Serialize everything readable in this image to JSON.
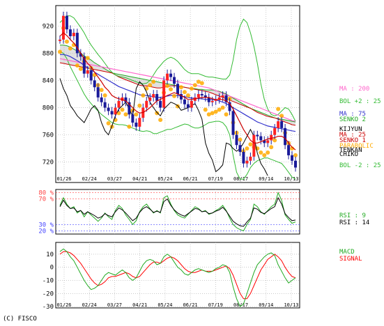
{
  "credit": "(C) FISCO",
  "colors": {
    "ma200": "#ff66cc",
    "ma75": "#3333cc",
    "ma25": "#cc0000",
    "bollinger": "#33bb33",
    "close": "#000000",
    "kumo": "#aaaaaa",
    "senko1": "#cc0000",
    "senko2": "#22aa22",
    "kijyun": "#000000",
    "parabolic": "#ffaa00",
    "tenkan": "#000000",
    "chiko": "#000000",
    "rsi9": "#22aa22",
    "rsi14": "#000000",
    "macd": "#22aa22",
    "signal": "#ff0000",
    "rsi_hi": "#ff4444",
    "rsi_lo": "#4444ff"
  },
  "chart_data": [
    {
      "type": "line",
      "panel": "price",
      "ylim": [
        690,
        950
      ],
      "yticks": [
        720,
        760,
        800,
        840,
        880,
        920
      ],
      "x_labels": [
        "01/26",
        "02/24",
        "03/27",
        "04/21",
        "05/24",
        "06/21",
        "07/19",
        "08/17",
        "09/14",
        "10/13"
      ],
      "legend": [
        {
          "name": "MA : 200",
          "color": "#ff66cc"
        },
        {
          "name": "BOL +2 : 25",
          "color": "#33bb33"
        },
        {
          "name": "MA : 75",
          "color": "#3333cc"
        },
        {
          "name": "SENKO 2",
          "color": "#22aa22"
        },
        {
          "name": "KIJYUN",
          "color": "#000000"
        },
        {
          "name": "MA : 25",
          "color": "#cc0000"
        },
        {
          "name": "SENKO 1",
          "color": "#cc0000"
        },
        {
          "name": "PARABOLIC",
          "color": "#ffaa00"
        },
        {
          "name": "TENKAN",
          "color": "#000000"
        },
        {
          "name": "CHIKO",
          "color": "#000000"
        },
        {
          "name": "BOL -2 : 25",
          "color": "#33bb33"
        }
      ],
      "series": {
        "close": [
          900,
          935,
          915,
          905,
          910,
          880,
          875,
          850,
          855,
          840,
          830,
          815,
          808,
          800,
          795,
          790,
          800,
          810,
          815,
          808,
          790,
          778,
          772,
          785,
          800,
          810,
          815,
          820,
          810,
          800,
          840,
          850,
          845,
          835,
          820,
          812,
          805,
          800,
          810,
          815,
          820,
          818,
          815,
          808,
          810,
          812,
          815,
          818,
          808,
          795,
          760,
          745,
          735,
          718,
          722,
          728,
          760,
          758,
          752,
          748,
          752,
          760,
          770,
          780,
          770,
          745,
          730,
          722,
          712
        ],
        "ma25": [
          905,
          910,
          906,
          900,
          895,
          888,
          880,
          872,
          865,
          860,
          852,
          845,
          838,
          830,
          825,
          818,
          815,
          813,
          812,
          810,
          805,
          800,
          795,
          792,
          793,
          796,
          800,
          805,
          810,
          812,
          815,
          818,
          820,
          822,
          820,
          818,
          815,
          812,
          812,
          813,
          814,
          815,
          815,
          815,
          813,
          812,
          812,
          812,
          810,
          806,
          798,
          788,
          778,
          768,
          760,
          752,
          748,
          748,
          750,
          752,
          754,
          755,
          756,
          758,
          758,
          755,
          748,
          742,
          738
        ],
        "ma75": [
          878,
          878,
          877,
          875,
          872,
          869,
          866,
          862,
          859,
          856,
          852,
          849,
          846,
          843,
          840,
          837,
          834,
          831,
          829,
          827,
          825,
          823,
          821,
          819,
          818,
          818,
          817,
          816,
          815,
          815,
          816,
          817,
          818,
          818,
          818,
          817,
          816,
          815,
          814,
          814,
          813,
          813,
          812,
          812,
          812,
          811,
          810,
          808,
          806,
          803,
          800,
          797,
          794,
          791,
          788,
          785,
          782,
          779,
          777,
          775,
          773,
          772,
          771,
          770,
          769,
          768,
          767,
          766,
          765
        ],
        "ma200": [
          872,
          871,
          870,
          869,
          868,
          867,
          866,
          865,
          864,
          863,
          862,
          861,
          860,
          859,
          858,
          857,
          856,
          855,
          854,
          853,
          852,
          851,
          850,
          849,
          848,
          847,
          846,
          845,
          844,
          843,
          842,
          841,
          840,
          839,
          838,
          837,
          836,
          835,
          834,
          833,
          832,
          831,
          830,
          829,
          827,
          825,
          823,
          821,
          819,
          817,
          815,
          813,
          811,
          809,
          807,
          805,
          803,
          801,
          799,
          797,
          795,
          793,
          791,
          789,
          787,
          785,
          783,
          781,
          780
        ],
        "bol_up": [
          925,
          930,
          935,
          935,
          932,
          925,
          918,
          910,
          900,
          892,
          885,
          878,
          872,
          865,
          858,
          852,
          848,
          846,
          845,
          844,
          842,
          840,
          838,
          836,
          835,
          836,
          840,
          848,
          856,
          862,
          868,
          872,
          874,
          872,
          868,
          862,
          856,
          852,
          850,
          850,
          850,
          848,
          846,
          845,
          845,
          844,
          843,
          842,
          842,
          848,
          870,
          900,
          920,
          930,
          925,
          910,
          890,
          865,
          835,
          812,
          798,
          790,
          788,
          790,
          795,
          800,
          798,
          790,
          780
        ],
        "bol_dn": [
          882,
          880,
          872,
          860,
          850,
          840,
          830,
          820,
          812,
          806,
          800,
          795,
          790,
          786,
          782,
          778,
          776,
          775,
          775,
          774,
          772,
          770,
          768,
          766,
          765,
          766,
          765,
          762,
          762,
          764,
          766,
          768,
          768,
          770,
          772,
          774,
          776,
          775,
          772,
          770,
          770,
          772,
          775,
          778,
          779,
          780,
          780,
          778,
          772,
          760,
          730,
          705,
          695,
          695,
          702,
          712,
          718,
          722,
          724,
          726,
          726,
          724,
          722,
          720,
          718,
          712,
          705,
          698,
          695
        ]
      }
    },
    {
      "type": "line",
      "panel": "rsi",
      "ylim": [
        15,
        85
      ],
      "yticks_high": [
        "80 %",
        "70 %"
      ],
      "yticks_low": [
        "30 %",
        "20 %"
      ],
      "legend": [
        {
          "name": "RSI : 9",
          "color": "#22aa22"
        },
        {
          "name": "RSI : 14",
          "color": "#000000"
        }
      ],
      "series": {
        "rsi9": [
          60,
          72,
          62,
          55,
          58,
          48,
          52,
          42,
          50,
          45,
          40,
          35,
          40,
          48,
          42,
          38,
          52,
          60,
          55,
          45,
          38,
          30,
          36,
          50,
          58,
          62,
          55,
          48,
          52,
          48,
          72,
          75,
          62,
          52,
          45,
          42,
          40,
          46,
          52,
          58,
          55,
          50,
          52,
          46,
          48,
          52,
          55,
          60,
          52,
          40,
          30,
          25,
          22,
          20,
          30,
          38,
          62,
          58,
          50,
          46,
          52,
          58,
          62,
          80,
          68,
          45,
          38,
          32,
          34
        ],
        "rsi14": [
          58,
          68,
          60,
          55,
          56,
          50,
          52,
          46,
          50,
          47,
          44,
          40,
          42,
          47,
          44,
          42,
          50,
          56,
          53,
          48,
          42,
          36,
          40,
          49,
          55,
          58,
          54,
          49,
          51,
          49,
          66,
          70,
          60,
          53,
          48,
          45,
          43,
          47,
          51,
          55,
          54,
          50,
          51,
          47,
          48,
          51,
          53,
          57,
          51,
          43,
          35,
          31,
          28,
          27,
          34,
          40,
          56,
          54,
          49,
          47,
          51,
          55,
          58,
          72,
          62,
          47,
          41,
          36,
          37
        ]
      }
    },
    {
      "type": "line",
      "panel": "macd",
      "ylim": [
        -31,
        19
      ],
      "yticks": [
        10,
        0,
        -10,
        -20,
        -30
      ],
      "legend": [
        {
          "name": "MACD",
          "color": "#22aa22"
        },
        {
          "name": "SIGNAL",
          "color": "#ff0000"
        }
      ],
      "series": {
        "macd": [
          12,
          14,
          12,
          8,
          5,
          0,
          -5,
          -10,
          -14,
          -17,
          -16,
          -14,
          -10,
          -6,
          -4,
          -5,
          -6,
          -4,
          -2,
          -4,
          -8,
          -10,
          -8,
          -3,
          2,
          5,
          6,
          5,
          2,
          3,
          8,
          10,
          8,
          4,
          0,
          -2,
          -5,
          -6,
          -4,
          -2,
          -1,
          -2,
          -3,
          -4,
          -3,
          -1,
          0,
          2,
          1,
          -4,
          -15,
          -24,
          -30,
          -28,
          -20,
          -12,
          -4,
          2,
          5,
          8,
          10,
          11,
          9,
          2,
          -3,
          -8,
          -12,
          -10,
          -8
        ],
        "signal": [
          10,
          12,
          12,
          11,
          9,
          6,
          3,
          -1,
          -5,
          -9,
          -12,
          -14,
          -13,
          -11,
          -8,
          -7,
          -7,
          -6,
          -5,
          -4,
          -5,
          -7,
          -8,
          -7,
          -4,
          -1,
          2,
          4,
          4,
          3,
          5,
          7,
          8,
          7,
          5,
          2,
          -1,
          -3,
          -4,
          -4,
          -3,
          -2,
          -3,
          -3,
          -3,
          -2,
          -1,
          0,
          1,
          -1,
          -6,
          -13,
          -20,
          -24,
          -24,
          -20,
          -14,
          -8,
          -2,
          2,
          6,
          8,
          10,
          8,
          5,
          0,
          -4,
          -7,
          -8
        ]
      }
    }
  ]
}
